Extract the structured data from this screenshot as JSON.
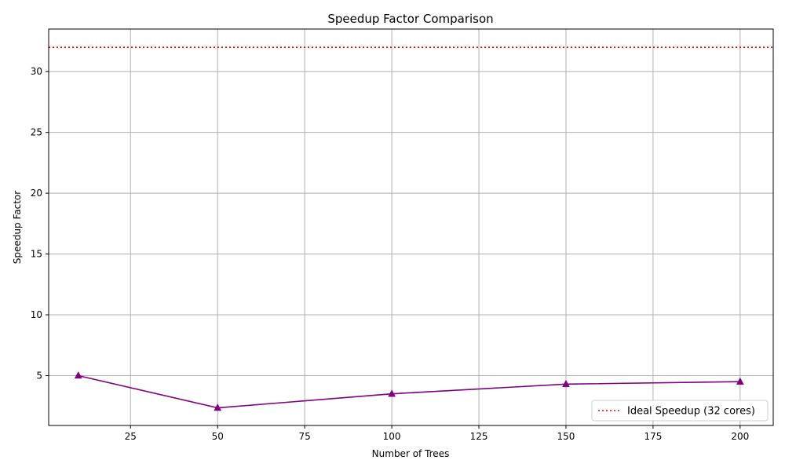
{
  "chart_data": {
    "type": "line",
    "title": "Speedup Factor Comparison",
    "xlabel": "Number of Trees",
    "ylabel": "Speedup Factor",
    "xlim": [
      1.5,
      209.5
    ],
    "ylim": [
      0.9,
      33.5
    ],
    "xticks": [
      25,
      50,
      75,
      100,
      125,
      150,
      175,
      200
    ],
    "yticks": [
      5,
      10,
      15,
      20,
      25,
      30
    ],
    "grid": true,
    "legend_position": "lower-right",
    "series": [
      {
        "name": "",
        "color": "#800080",
        "marker": "triangle-up",
        "x": [
          10,
          50,
          100,
          150,
          200
        ],
        "y": [
          5.0,
          2.35,
          3.5,
          4.3,
          4.5
        ]
      }
    ],
    "reference_lines": [
      {
        "name": "Ideal Speedup (32 cores)",
        "y": 32,
        "color": "#ff0000",
        "style": "dotted"
      }
    ]
  }
}
